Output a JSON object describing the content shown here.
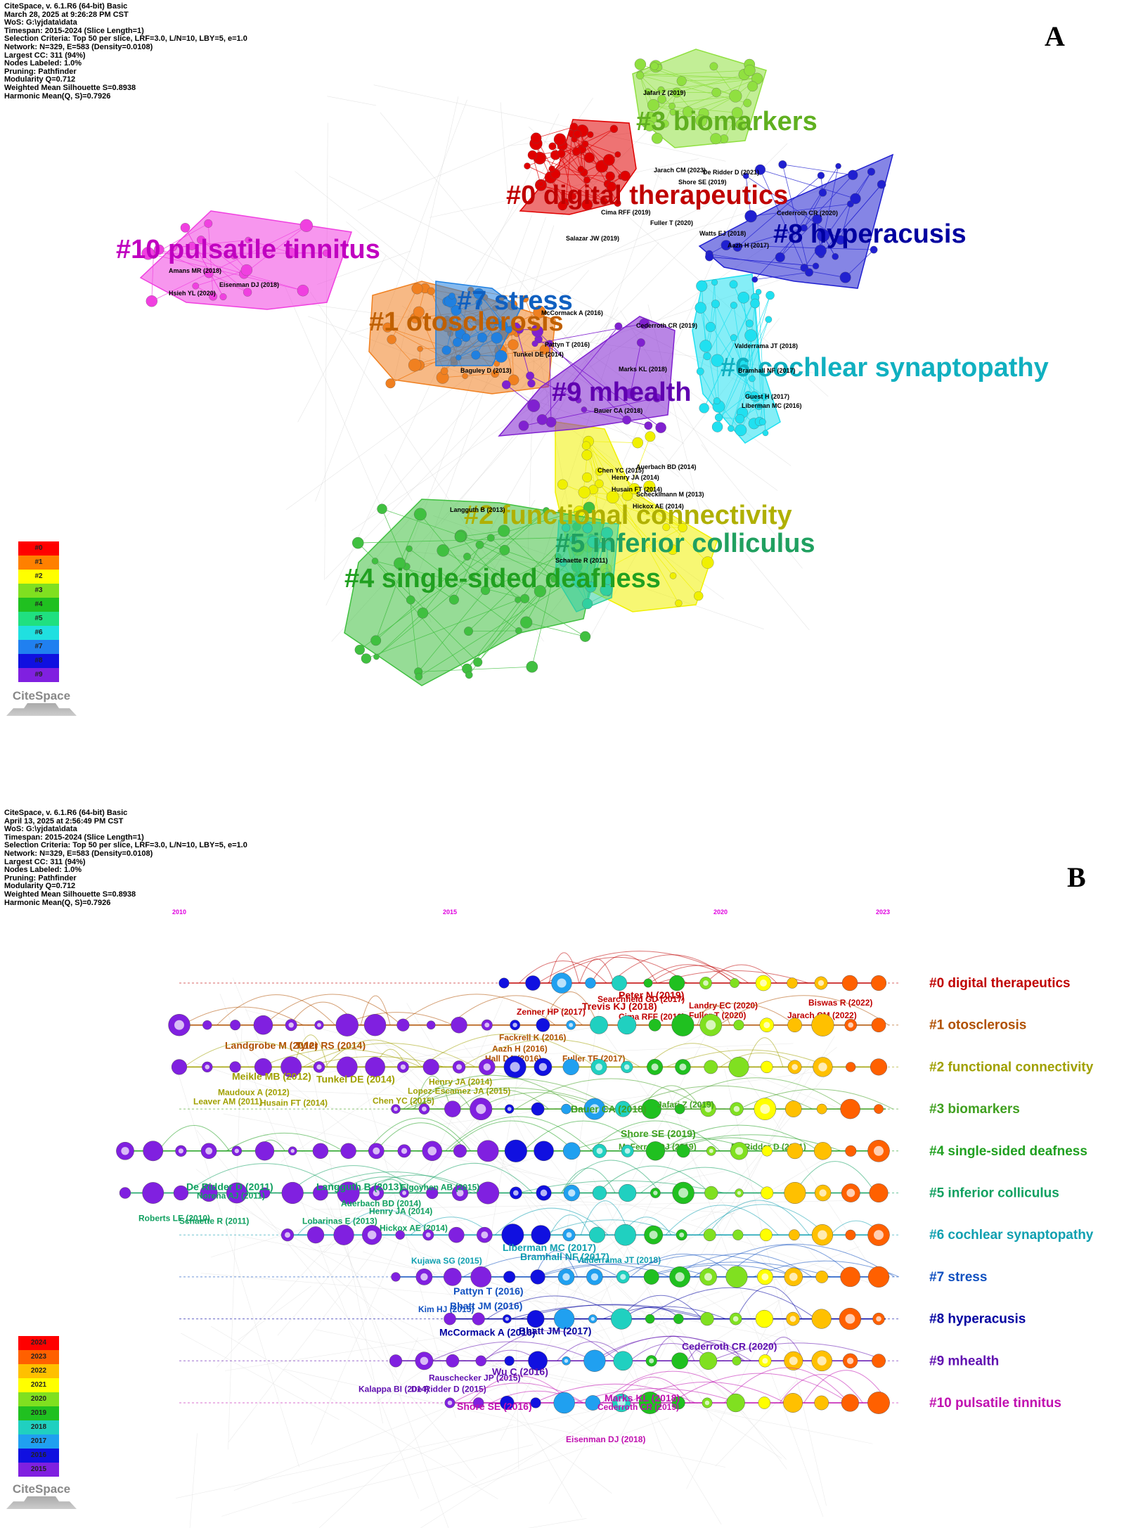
{
  "panelA": {
    "letter": "A",
    "meta": [
      "CiteSpace, v. 6.1.R6 (64-bit) Basic",
      "March 28, 2025 at 9:26:28 PM CST",
      "WoS: G:\\yjdata\\data",
      "Timespan: 2015-2024 (Slice Length=1)",
      "Selection Criteria: Top 50 per slice, LRF=3.0, L/N=10, LBY=5, e=1.0",
      "Network: N=329, E=583 (Density=0.0108)",
      "Largest CC: 311 (94%)",
      "Nodes Labeled: 1.0%",
      "Pruning: Pathfinder",
      "Modularity Q=0.712",
      "Weighted Mean Silhouette S=0.8938",
      "Harmonic Mean(Q, S)=0.7926"
    ],
    "clusters": [
      {
        "id": "#0",
        "label": "#0 digital therapeutics",
        "color": "#e00000",
        "label_color": "#c00000"
      },
      {
        "id": "#1",
        "label": "#1 otosclerosis",
        "color": "#f08020",
        "label_color": "#c06000"
      },
      {
        "id": "#2",
        "label": "#2 functional connectivity",
        "color": "#f0f000",
        "label_color": "#b0b000"
      },
      {
        "id": "#3",
        "label": "#3 biomarkers",
        "color": "#90e040",
        "label_color": "#60b020"
      },
      {
        "id": "#4",
        "label": "#4 single-sided deafness",
        "color": "#40c040",
        "label_color": "#20a020"
      },
      {
        "id": "#5",
        "label": "#5 inferior colliculus",
        "color": "#30d0a0",
        "label_color": "#20a060"
      },
      {
        "id": "#6",
        "label": "#6 cochlear synaptopathy",
        "color": "#20e0f0",
        "label_color": "#10b0c0"
      },
      {
        "id": "#7",
        "label": "#7 stress",
        "color": "#2080e0",
        "label_color": "#1060c0"
      },
      {
        "id": "#8",
        "label": "#8 hyperacusis",
        "color": "#2020d0",
        "label_color": "#0000a0"
      },
      {
        "id": "#9",
        "label": "#9 mhealth",
        "color": "#8020d0",
        "label_color": "#6000b0"
      },
      {
        "id": "#10",
        "label": "#10 pulsatile tinnitus",
        "color": "#f040e0",
        "label_color": "#c000c0"
      }
    ],
    "node_labels": [
      "Jafari Z (2019)",
      "Jarach CM (2023)",
      "De Ridder D (2021)",
      "Shore SE (2019)",
      "Cima RFF (2019)",
      "Fuller T (2020)",
      "Salazar JW (2019)",
      "Cederroth CR (2020)",
      "Watts EJ (2018)",
      "Aazh H (2017)",
      "Amans MR (2018)",
      "Eisenman DJ (2018)",
      "Hsieh YL (2020)",
      "McCormack A (2016)",
      "Pattyn T (2016)",
      "Tunkel DE (2014)",
      "Baguley D (2013)",
      "Cederroth CR (2019)",
      "Marks KL (2018)",
      "Bauer CA (2018)",
      "Valderrama JT (2018)",
      "Bramhall NF (2017)",
      "Guest H (2017)",
      "Liberman MC (2016)",
      "Chen YC (2015)",
      "Auerbach BD (2014)",
      "Henry JA (2014)",
      "Husain FT (2014)",
      "Schecklmann M (2013)",
      "Hickox AE (2014)",
      "Langguth B (2013)",
      "Schaette R (2011)"
    ],
    "legend": [
      "#0",
      "#1",
      "#2",
      "#3",
      "#4",
      "#5",
      "#6",
      "#7",
      "#8",
      "#9"
    ],
    "legend_colors": [
      "#ff0000",
      "#ff8000",
      "#ffff00",
      "#80e020",
      "#20c020",
      "#20e080",
      "#20e0e0",
      "#2080f0",
      "#1010e0",
      "#8020e0"
    ],
    "logo": "CiteSpace"
  },
  "panelB": {
    "letter": "B",
    "meta": [
      "CiteSpace, v. 6.1.R6 (64-bit) Basic",
      "April 13, 2025 at 2:56:49 PM CST",
      "WoS: G:\\yjdata\\data",
      "Timespan: 2015-2024 (Slice Length=1)",
      "Selection Criteria: Top 50 per slice, LRF=3.0, L/N=10, LBY=5, e=1.0",
      "Network: N=329, E=583 (Density=0.0108)",
      "Largest CC: 311 (94%)",
      "Nodes Labeled: 1.0%",
      "Pruning: Pathfinder",
      "Modularity Q=0.712",
      "Weighted Mean Silhouette S=0.8938",
      "Harmonic Mean(Q, S)=0.7926"
    ],
    "years": [
      2010,
      2015,
      2020,
      2023
    ],
    "tracks": [
      {
        "label": "#0 digital therapeutics",
        "color": "#c00000",
        "start": 2016,
        "papers": [
          "Peter N (2019)",
          "Trevis KJ (2018)",
          "Searchfield GD (2017)",
          "Zenner HP (2017)",
          "Cima RFF (2019)",
          "Fuller T (2020)",
          "Jarach CM (2022)",
          "Biswas R (2022)",
          "Landry EC (2020)"
        ]
      },
      {
        "label": "#1 otosclerosis",
        "color": "#b05000",
        "start": 2010,
        "papers": [
          "Landgrobe M (2012)",
          "Tyler RS (2014)",
          "Fackrell K (2016)",
          "Aazh H (2016)",
          "Hall DA (2016)",
          "Fuller TE (2017)"
        ]
      },
      {
        "label": "#2 functional connectivity",
        "color": "#a0a000",
        "start": 2010,
        "papers": [
          "Meikle MB (2012)",
          "Tunkel DE (2014)",
          "Henry JA (2014)",
          "Maudoux A (2012)",
          "Leaver AM (2011)",
          "Lopez-Escamez JA (2015)",
          "Husain FT (2014)",
          "Chen YC (2015)"
        ]
      },
      {
        "label": "#3 biomarkers",
        "color": "#40a020",
        "start": 2014,
        "papers": [
          "Bauer CA (2018)",
          "Shore SE (2019)",
          "McFerran DJ (2019)",
          "De Ridder D (2021)",
          "Jafari Z (2019)"
        ]
      },
      {
        "label": "#4 single-sided deafness",
        "color": "#20a020",
        "start": 2009,
        "papers": []
      },
      {
        "label": "#5 inferior colliculus",
        "color": "#10a060",
        "start": 2009,
        "papers": [
          "De Ridder D (2011)",
          "Langguth B (2013)",
          "Elgoyhen AB (2015)",
          "Norena AJ (2011)",
          "Roberts LE (2010)",
          "Schaette R (2011)",
          "Auerbach BD (2014)",
          "Henry JA (2014)",
          "Lobarinas E (2013)",
          "Hickox AE (2014)"
        ]
      },
      {
        "label": "#6 cochlear synaptopathy",
        "color": "#10a0b0",
        "start": 2012,
        "papers": [
          "Liberman MC (2017)",
          "Bramhall NF (2017)",
          "Valderrama JT (2018)",
          "Kujawa SG (2015)"
        ]
      },
      {
        "label": "#7 stress",
        "color": "#1050c0",
        "start": 2014,
        "papers": [
          "Pattyn T (2016)",
          "Bhatt JM (2016)",
          "Kim HJ (2015)"
        ]
      },
      {
        "label": "#8 hyperacusis",
        "color": "#0000a0",
        "start": 2015,
        "papers": [
          "McCormack A (2016)",
          "Bhatt JM (2017)"
        ]
      },
      {
        "label": "#9 mhealth",
        "color": "#6010b0",
        "start": 2014,
        "papers": [
          "Cederroth CR (2020)",
          "Wu C (2016)",
          "Rauschecker JP (2015)",
          "Kalappa BI (2014)",
          "De Ridder D (2015)"
        ]
      },
      {
        "label": "#10 pulsatile tinnitus",
        "color": "#c010b0",
        "start": 2015,
        "papers": [
          "Shore SE (2016)",
          "Marks KL (2018)",
          "Cederroth CR (2019)",
          "Eisenman DJ (2018)"
        ]
      }
    ],
    "legend": [
      "2024",
      "2023",
      "2022",
      "2021",
      "2020",
      "2019",
      "2018",
      "2017",
      "2016",
      "2015"
    ],
    "legend_colors": [
      "#ff0000",
      "#ff6000",
      "#ffc000",
      "#ffff00",
      "#80e020",
      "#20c020",
      "#20d0c0",
      "#20a0f0",
      "#1010e0",
      "#8020e0"
    ],
    "logo": "CiteSpace"
  }
}
